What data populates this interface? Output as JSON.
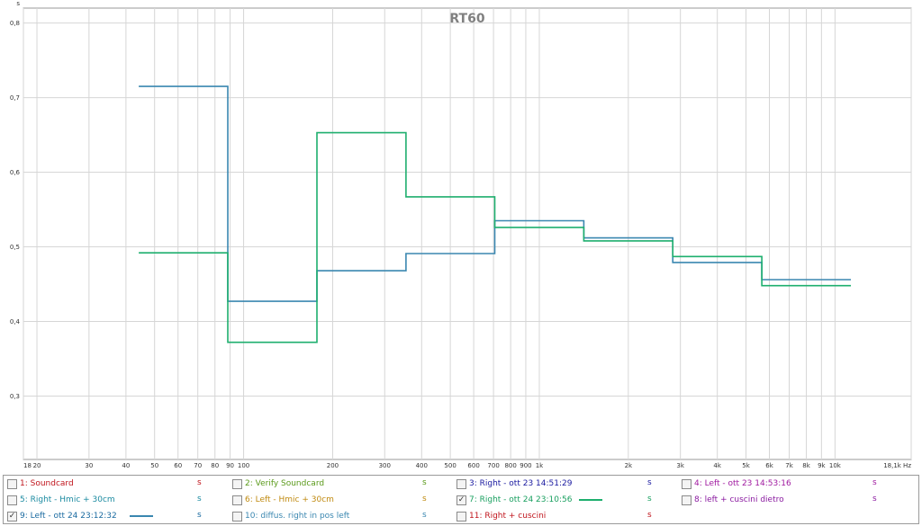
{
  "chart_data": {
    "type": "line",
    "title": "RT60",
    "y_unit": "s",
    "x_unit": "Hz",
    "x_scale": "log",
    "xlim": [
      18,
      18100
    ],
    "ylim": [
      0.215,
      0.82
    ],
    "grid": true,
    "y_ticks": [
      {
        "value": 0.3,
        "label": "0,3"
      },
      {
        "value": 0.4,
        "label": "0,4"
      },
      {
        "value": 0.5,
        "label": "0,5"
      },
      {
        "value": 0.6,
        "label": "0,6"
      },
      {
        "value": 0.7,
        "label": "0,7"
      },
      {
        "value": 0.8,
        "label": "0,8"
      }
    ],
    "x_ticks": [
      {
        "value": 18,
        "label": "18"
      },
      {
        "value": 20,
        "label": "20"
      },
      {
        "value": 30,
        "label": "30"
      },
      {
        "value": 40,
        "label": "40"
      },
      {
        "value": 50,
        "label": "50"
      },
      {
        "value": 60,
        "label": "60"
      },
      {
        "value": 70,
        "label": "70"
      },
      {
        "value": 80,
        "label": "80"
      },
      {
        "value": 90,
        "label": "90"
      },
      {
        "value": 100,
        "label": "100"
      },
      {
        "value": 200,
        "label": "200"
      },
      {
        "value": 300,
        "label": "300"
      },
      {
        "value": 400,
        "label": "400"
      },
      {
        "value": 500,
        "label": "500"
      },
      {
        "value": 600,
        "label": "600"
      },
      {
        "value": 700,
        "label": "700"
      },
      {
        "value": 800,
        "label": "800"
      },
      {
        "value": 900,
        "label": "900"
      },
      {
        "value": 1000,
        "label": "1k"
      },
      {
        "value": 2000,
        "label": "2k"
      },
      {
        "value": 3000,
        "label": "3k"
      },
      {
        "value": 4000,
        "label": "4k"
      },
      {
        "value": 5000,
        "label": "5k"
      },
      {
        "value": 6000,
        "label": "6k"
      },
      {
        "value": 7000,
        "label": "7k"
      },
      {
        "value": 8000,
        "label": "8k"
      },
      {
        "value": 9000,
        "label": "9k"
      },
      {
        "value": 10000,
        "label": "10k"
      },
      {
        "value": 18100,
        "label": "18,1k Hz"
      }
    ],
    "series": [
      {
        "name": "9: Left - ott 24 23:12:32",
        "color": "#3a87b0",
        "bands_hz": [
          [
            44.2,
            88.4
          ],
          [
            88.4,
            177
          ],
          [
            177,
            354
          ],
          [
            354,
            707
          ],
          [
            707,
            1414
          ],
          [
            1414,
            2828
          ],
          [
            2828,
            5657
          ],
          [
            5657,
            11314
          ]
        ],
        "values": [
          0.715,
          0.427,
          0.468,
          0.491,
          0.535,
          0.512,
          0.479,
          0.456
        ]
      },
      {
        "name": "7: Right - ott 24 23:10:56",
        "color": "#1eaf6e",
        "bands_hz": [
          [
            44.2,
            88.4
          ],
          [
            88.4,
            177
          ],
          [
            177,
            354
          ],
          [
            354,
            707
          ],
          [
            707,
            1414
          ],
          [
            1414,
            2828
          ],
          [
            2828,
            5657
          ],
          [
            5657,
            11314
          ]
        ],
        "values": [
          0.492,
          0.372,
          0.653,
          0.567,
          0.526,
          0.508,
          0.487,
          0.448
        ]
      }
    ]
  },
  "legend": {
    "unit": "s",
    "items": [
      {
        "label": "1: Soundcard",
        "color": "#c0141c",
        "checked": false,
        "has_line": false,
        "line_color": ""
      },
      {
        "label": "2: Verify Soundcard",
        "color": "#5a9a1a",
        "checked": false,
        "has_line": false,
        "line_color": ""
      },
      {
        "label": "3: Right - ott 23 14:51:29",
        "color": "#1a1aa0",
        "checked": false,
        "has_line": false,
        "line_color": ""
      },
      {
        "label": "4: Left - ott 23 14:53:16",
        "color": "#a01aa0",
        "checked": false,
        "has_line": false,
        "line_color": ""
      },
      {
        "label": "5: Right - Hmic + 30cm",
        "color": "#1a8aa0",
        "checked": false,
        "has_line": false,
        "line_color": ""
      },
      {
        "label": "6: Left - Hmic + 30cm",
        "color": "#c08a10",
        "checked": false,
        "has_line": false,
        "line_color": ""
      },
      {
        "label": "7: Right - ott 24 23:10:56",
        "color": "#1aa060",
        "checked": true,
        "has_line": true,
        "line_color": "#1eaf6e"
      },
      {
        "label": "8: left + cuscini dietro",
        "color": "#8a1aa0",
        "checked": false,
        "has_line": false,
        "line_color": ""
      },
      {
        "label": "9: Left - ott 24 23:12:32",
        "color": "#1a6aa0",
        "checked": true,
        "has_line": true,
        "line_color": "#3a87b0"
      },
      {
        "label": "10: diffus. right in pos left",
        "color": "#3a87b0",
        "checked": false,
        "has_line": false,
        "line_color": ""
      },
      {
        "label": "11: Right + cuscini",
        "color": "#c0141c",
        "checked": false,
        "has_line": false,
        "line_color": ""
      }
    ]
  }
}
